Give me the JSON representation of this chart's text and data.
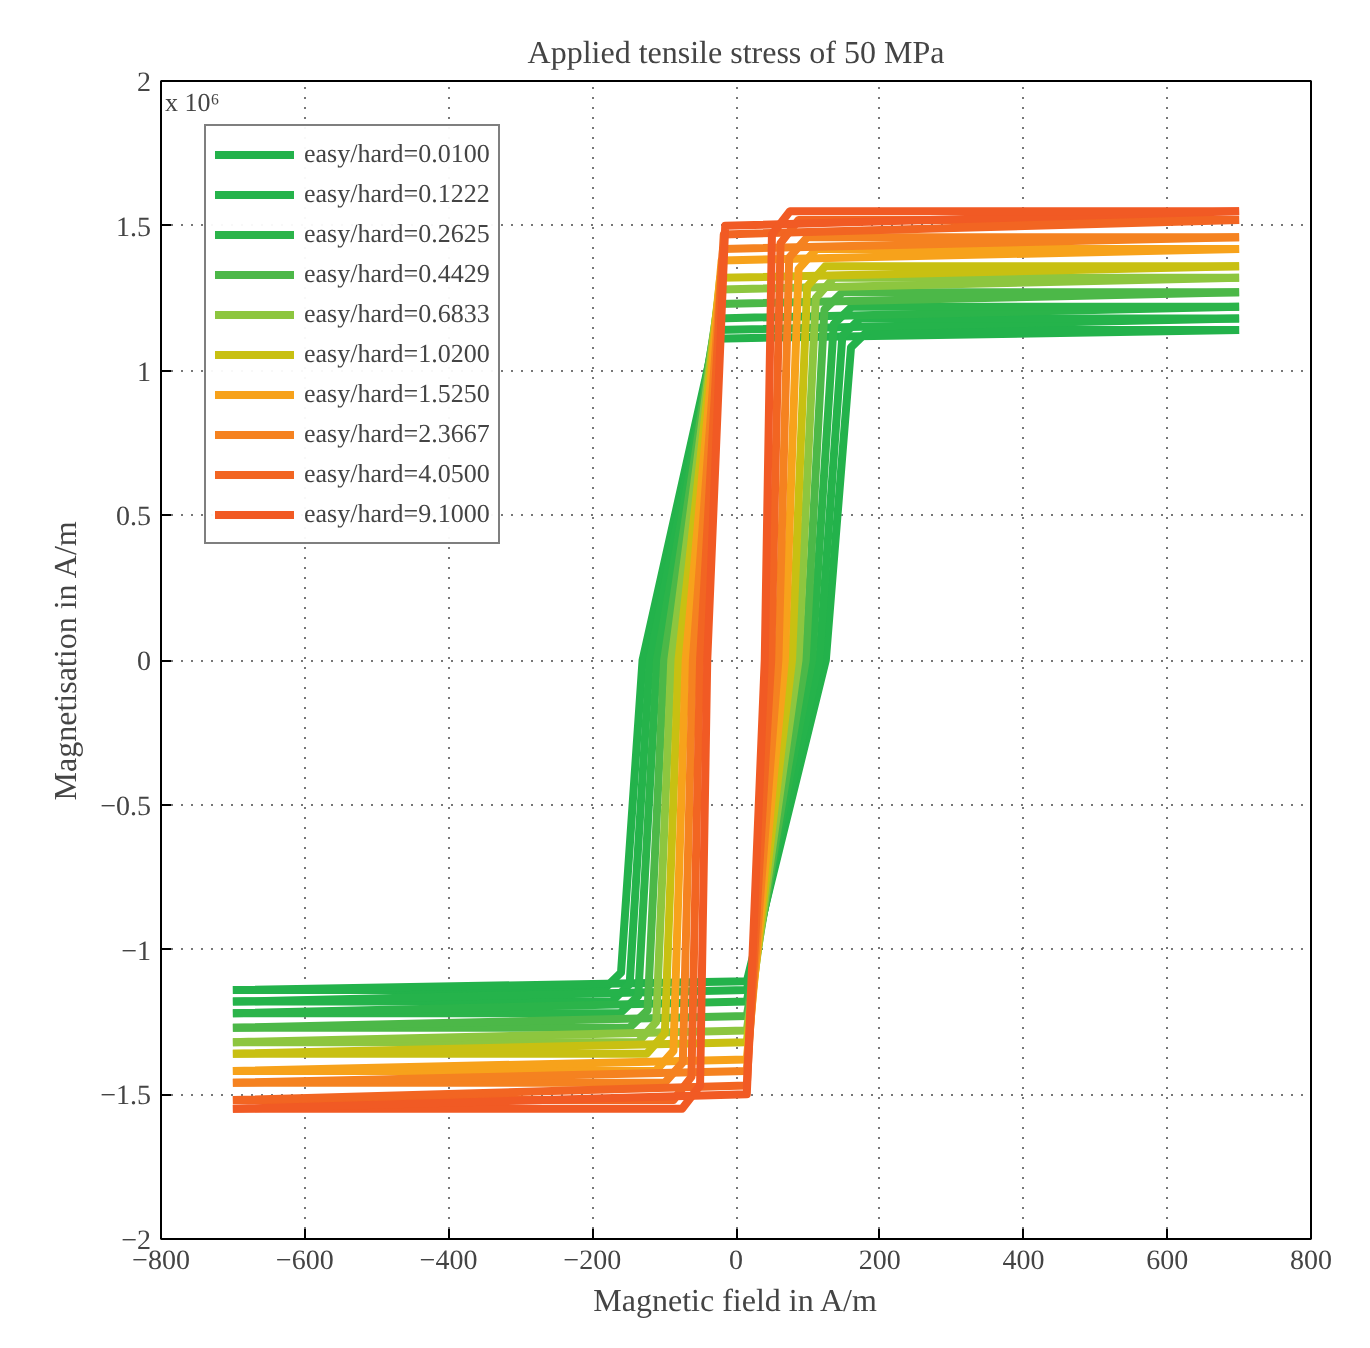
{
  "chart_data": {
    "type": "line",
    "title": "Applied tensile stress of 50 MPa",
    "xlabel": "Magnetic field in A/m",
    "ylabel": "Magnetisation in A/m",
    "annotations": [
      "x 10⁶"
    ],
    "xlim": [
      -800,
      800
    ],
    "xticks": [
      -800,
      -600,
      -400,
      -200,
      0,
      200,
      400,
      600,
      800
    ],
    "ylim": [
      -2,
      2
    ],
    "yticks": [
      -2,
      -1.5,
      -1,
      -0.5,
      0,
      0.5,
      1,
      1.5,
      2
    ],
    "grid": true,
    "legend": "top left",
    "marker": "none",
    "line_style": "solid",
    "series": [
      {
        "name": "easy/hard=0.0100",
        "color": "#23b24b",
        "x": [
          -700,
          -185,
          -160,
          -130,
          -30,
          700
        ],
        "values": [
          -1.14,
          -1.14,
          -1.08,
          0,
          1.11,
          1.14
        ]
      },
      {
        "color": "#23b24b",
        "x": [
          -700,
          15,
          125,
          160,
          185,
          700
        ],
        "values": [
          -1.14,
          -1.11,
          0,
          1.08,
          1.14,
          1.14
        ]
      },
      {
        "name": "easy/hard=0.1222",
        "color": "#25b34b",
        "x": [
          -700,
          -173,
          -148,
          -120,
          -28,
          700
        ],
        "values": [
          -1.18,
          -1.18,
          -1.12,
          0,
          1.14,
          1.18
        ]
      },
      {
        "color": "#25b34b",
        "x": [
          -700,
          15,
          116,
          148,
          173,
          700
        ],
        "values": [
          -1.18,
          -1.14,
          0,
          1.12,
          1.18,
          1.18
        ]
      },
      {
        "name": "easy/hard=0.2625",
        "color": "#2bb44a",
        "x": [
          -700,
          -161,
          -136,
          -110,
          -27,
          700
        ],
        "values": [
          -1.22,
          -1.22,
          -1.16,
          0,
          1.18,
          1.22
        ]
      },
      {
        "color": "#2bb44a",
        "x": [
          -700,
          15,
          106,
          136,
          161,
          700
        ],
        "values": [
          -1.22,
          -1.18,
          0,
          1.16,
          1.22,
          1.22
        ]
      },
      {
        "name": "easy/hard=0.4429",
        "color": "#4cb848",
        "x": [
          -700,
          -148,
          -123,
          -100,
          -25,
          700
        ],
        "values": [
          -1.27,
          -1.27,
          -1.21,
          0,
          1.23,
          1.27
        ]
      },
      {
        "color": "#4cb848",
        "x": [
          -700,
          15,
          97,
          123,
          148,
          700
        ],
        "values": [
          -1.27,
          -1.23,
          0,
          1.21,
          1.27,
          1.27
        ]
      },
      {
        "name": "easy/hard=0.6833",
        "color": "#8dc63f",
        "x": [
          -700,
          -136,
          -111,
          -90,
          -23,
          700
        ],
        "values": [
          -1.32,
          -1.32,
          -1.25,
          0,
          1.28,
          1.32
        ]
      },
      {
        "color": "#8dc63f",
        "x": [
          -700,
          15,
          87,
          111,
          136,
          700
        ],
        "values": [
          -1.32,
          -1.28,
          0,
          1.25,
          1.32,
          1.32
        ]
      },
      {
        "name": "easy/hard=1.0200",
        "color": "#c8c012",
        "x": [
          -700,
          -124,
          -99,
          -80,
          -22,
          700
        ],
        "values": [
          -1.36,
          -1.36,
          -1.29,
          0,
          1.32,
          1.36
        ]
      },
      {
        "color": "#c8c012",
        "x": [
          -700,
          15,
          78,
          99,
          124,
          700
        ],
        "values": [
          -1.36,
          -1.32,
          0,
          1.29,
          1.36,
          1.36
        ]
      },
      {
        "name": "easy/hard=1.5250",
        "color": "#f7a21b",
        "x": [
          -700,
          -112,
          -87,
          -70,
          -20,
          700
        ],
        "values": [
          -1.42,
          -1.42,
          -1.35,
          0,
          1.38,
          1.42
        ]
      },
      {
        "color": "#f7a21b",
        "x": [
          -700,
          15,
          68,
          87,
          112,
          700
        ],
        "values": [
          -1.42,
          -1.38,
          0,
          1.35,
          1.42,
          1.42
        ]
      },
      {
        "name": "easy/hard=2.3667",
        "color": "#f58220",
        "x": [
          -700,
          -99,
          -74,
          -60,
          -18,
          700
        ],
        "values": [
          -1.46,
          -1.46,
          -1.39,
          0,
          1.42,
          1.46
        ]
      },
      {
        "color": "#f58220",
        "x": [
          -700,
          15,
          59,
          74,
          99,
          700
        ],
        "values": [
          -1.46,
          -1.42,
          0,
          1.39,
          1.46,
          1.46
        ]
      },
      {
        "name": "easy/hard=4.0500",
        "color": "#f26522",
        "x": [
          -700,
          -87,
          -62,
          -50,
          -17,
          700
        ],
        "values": [
          -1.52,
          -1.52,
          -1.44,
          0,
          1.47,
          1.52
        ]
      },
      {
        "color": "#f26522",
        "x": [
          -700,
          15,
          49,
          62,
          87,
          700
        ],
        "values": [
          -1.52,
          -1.47,
          0,
          1.44,
          1.52,
          1.52
        ]
      },
      {
        "name": "easy/hard=9.1000",
        "color": "#f15a24",
        "x": [
          -700,
          -75,
          -50,
          -40,
          -15,
          700
        ],
        "values": [
          -1.55,
          -1.55,
          -1.47,
          0,
          1.5,
          1.55
        ]
      },
      {
        "color": "#f15a24",
        "x": [
          -700,
          15,
          40,
          50,
          75,
          700
        ],
        "values": [
          -1.55,
          -1.5,
          0,
          1.47,
          1.55,
          1.55
        ]
      }
    ]
  }
}
